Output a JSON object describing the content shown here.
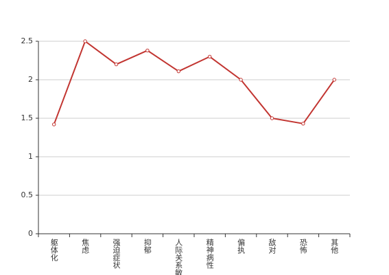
{
  "chart_data": {
    "type": "line",
    "categories": [
      "躯体化",
      "焦虑",
      "强迫症状",
      "抑郁",
      "人际关系敏感",
      "精神病性",
      "偏执",
      "敌对",
      "恐怖",
      "其他"
    ],
    "values": [
      1.42,
      2.5,
      2.2,
      2.38,
      2.11,
      2.3,
      2.0,
      1.5,
      1.43,
      2.0
    ],
    "color": "#c23531",
    "ylim": [
      0,
      2.5
    ],
    "yticks": [
      0,
      0.5,
      1,
      1.5,
      2,
      2.5
    ],
    "grid": true
  }
}
